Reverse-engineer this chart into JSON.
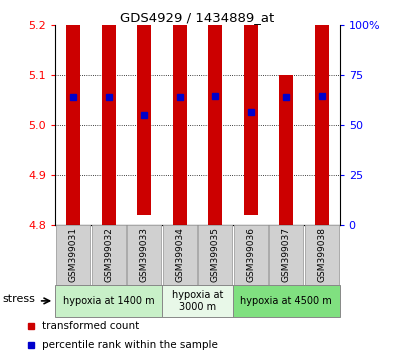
{
  "title": "GDS4929 / 1434889_at",
  "samples": [
    "GSM399031",
    "GSM399032",
    "GSM399033",
    "GSM399034",
    "GSM399035",
    "GSM399036",
    "GSM399037",
    "GSM399038"
  ],
  "bar_bottom": [
    4.8,
    4.8,
    4.82,
    4.8,
    4.8,
    4.82,
    4.8,
    4.8
  ],
  "bar_top": [
    5.2,
    5.2,
    5.2,
    5.2,
    5.2,
    5.2,
    5.1,
    5.2
  ],
  "percentile_rank": [
    5.055,
    5.055,
    5.02,
    5.055,
    5.058,
    5.025,
    5.055,
    5.058
  ],
  "ylim": [
    4.8,
    5.2
  ],
  "yticks": [
    4.8,
    4.9,
    5.0,
    5.1,
    5.2
  ],
  "right_yticks": [
    0,
    25,
    50,
    75,
    100
  ],
  "right_ylabels": [
    "0",
    "25",
    "50",
    "75",
    "100%"
  ],
  "bar_color": "#cc0000",
  "dot_color": "#0000cc",
  "groups": [
    {
      "label": "hypoxia at 1400 m",
      "start": 0,
      "end": 3,
      "color": "#c8f0c8"
    },
    {
      "label": "hypoxia at\n3000 m",
      "start": 3,
      "end": 5,
      "color": "#e8f8e8"
    },
    {
      "label": "hypoxia at 4500 m",
      "start": 5,
      "end": 8,
      "color": "#80e080"
    }
  ],
  "stress_label": "stress",
  "legend_red_label": "transformed count",
  "legend_blue_label": "percentile rank within the sample",
  "bar_width": 0.4
}
